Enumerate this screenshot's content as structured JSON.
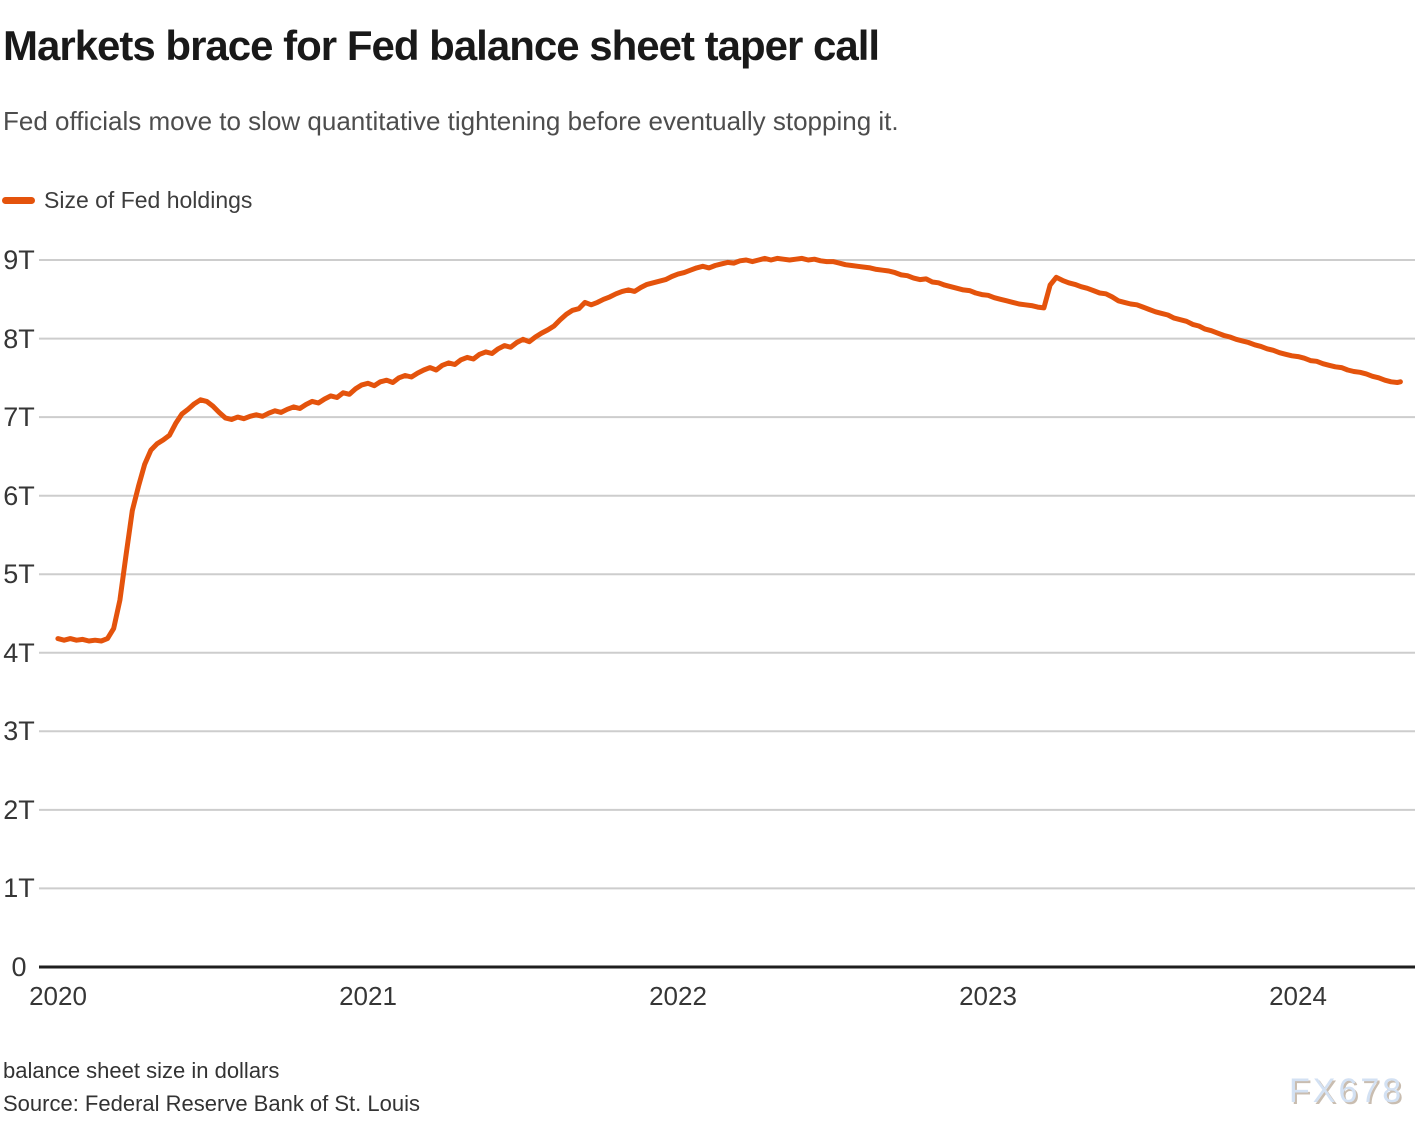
{
  "header": {
    "title": "Markets brace for Fed balance sheet taper call",
    "subtitle": "Fed officials move to slow quantitative tightening before eventually stopping it."
  },
  "legend": {
    "label": "Size of Fed holdings",
    "color": "#e4530c"
  },
  "footer": {
    "note": "balance sheet size in dollars",
    "source": "Source: Federal Reserve Bank of St. Louis"
  },
  "watermark": "FX678",
  "colors": {
    "line": "#e4530c",
    "grid": "#cdcdcd",
    "axis": "#1f1f1f",
    "tick_text": "#363636"
  },
  "chart_data": {
    "type": "line",
    "title": "Markets brace for Fed balance sheet taper call",
    "subtitle": "Fed officials move to slow quantitative tightening before eventually stopping it.",
    "xlabel": "",
    "ylabel": "balance sheet size in dollars",
    "unit": "trillions of US dollars",
    "grid": true,
    "legend_position": "top-left",
    "xlim": [
      2019.939,
      2024.377
    ],
    "ylim": [
      0,
      9
    ],
    "x_ticks": [
      {
        "value": 2020,
        "label": "2020"
      },
      {
        "value": 2021,
        "label": "2021"
      },
      {
        "value": 2022,
        "label": "2022"
      },
      {
        "value": 2023,
        "label": "2023"
      },
      {
        "value": 2024,
        "label": "2024"
      }
    ],
    "y_ticks": [
      {
        "value": 0,
        "label": "0"
      },
      {
        "value": 1,
        "label": "1T"
      },
      {
        "value": 2,
        "label": "2T"
      },
      {
        "value": 3,
        "label": "3T"
      },
      {
        "value": 4,
        "label": "4T"
      },
      {
        "value": 5,
        "label": "5T"
      },
      {
        "value": 6,
        "label": "6T"
      },
      {
        "value": 7,
        "label": "7T"
      },
      {
        "value": 8,
        "label": "8T"
      },
      {
        "value": 9,
        "label": "9T"
      }
    ],
    "series": [
      {
        "name": "Size of Fed holdings",
        "color": "#e4530c",
        "points": [
          [
            2020.0,
            4.18
          ],
          [
            2020.02,
            4.16
          ],
          [
            2020.04,
            4.18
          ],
          [
            2020.06,
            4.16
          ],
          [
            2020.08,
            4.17
          ],
          [
            2020.1,
            4.15
          ],
          [
            2020.12,
            4.16
          ],
          [
            2020.14,
            4.15
          ],
          [
            2020.16,
            4.18
          ],
          [
            2020.18,
            4.31
          ],
          [
            2020.2,
            4.67
          ],
          [
            2020.22,
            5.25
          ],
          [
            2020.24,
            5.81
          ],
          [
            2020.26,
            6.12
          ],
          [
            2020.28,
            6.4
          ],
          [
            2020.3,
            6.58
          ],
          [
            2020.32,
            6.66
          ],
          [
            2020.34,
            6.71
          ],
          [
            2020.36,
            6.77
          ],
          [
            2020.38,
            6.92
          ],
          [
            2020.4,
            7.04
          ],
          [
            2020.42,
            7.1
          ],
          [
            2020.44,
            7.17
          ],
          [
            2020.46,
            7.22
          ],
          [
            2020.48,
            7.2
          ],
          [
            2020.5,
            7.14
          ],
          [
            2020.52,
            7.06
          ],
          [
            2020.54,
            6.99
          ],
          [
            2020.56,
            6.97
          ],
          [
            2020.58,
            7.0
          ],
          [
            2020.6,
            6.98
          ],
          [
            2020.62,
            7.01
          ],
          [
            2020.64,
            7.03
          ],
          [
            2020.66,
            7.01
          ],
          [
            2020.68,
            7.05
          ],
          [
            2020.7,
            7.08
          ],
          [
            2020.72,
            7.06
          ],
          [
            2020.74,
            7.1
          ],
          [
            2020.76,
            7.13
          ],
          [
            2020.78,
            7.11
          ],
          [
            2020.8,
            7.16
          ],
          [
            2020.82,
            7.2
          ],
          [
            2020.84,
            7.18
          ],
          [
            2020.86,
            7.23
          ],
          [
            2020.88,
            7.27
          ],
          [
            2020.9,
            7.25
          ],
          [
            2020.92,
            7.31
          ],
          [
            2020.94,
            7.29
          ],
          [
            2020.96,
            7.36
          ],
          [
            2020.98,
            7.41
          ],
          [
            2021.0,
            7.43
          ],
          [
            2021.02,
            7.4
          ],
          [
            2021.04,
            7.45
          ],
          [
            2021.06,
            7.47
          ],
          [
            2021.08,
            7.44
          ],
          [
            2021.1,
            7.5
          ],
          [
            2021.12,
            7.53
          ],
          [
            2021.14,
            7.51
          ],
          [
            2021.16,
            7.56
          ],
          [
            2021.18,
            7.6
          ],
          [
            2021.2,
            7.63
          ],
          [
            2021.22,
            7.6
          ],
          [
            2021.24,
            7.66
          ],
          [
            2021.26,
            7.69
          ],
          [
            2021.28,
            7.67
          ],
          [
            2021.3,
            7.73
          ],
          [
            2021.32,
            7.76
          ],
          [
            2021.34,
            7.74
          ],
          [
            2021.36,
            7.8
          ],
          [
            2021.38,
            7.83
          ],
          [
            2021.4,
            7.81
          ],
          [
            2021.42,
            7.87
          ],
          [
            2021.44,
            7.91
          ],
          [
            2021.46,
            7.89
          ],
          [
            2021.48,
            7.95
          ],
          [
            2021.5,
            7.99
          ],
          [
            2021.52,
            7.96
          ],
          [
            2021.54,
            8.02
          ],
          [
            2021.56,
            8.07
          ],
          [
            2021.58,
            8.11
          ],
          [
            2021.6,
            8.16
          ],
          [
            2021.62,
            8.24
          ],
          [
            2021.64,
            8.31
          ],
          [
            2021.66,
            8.36
          ],
          [
            2021.68,
            8.38
          ],
          [
            2021.7,
            8.46
          ],
          [
            2021.72,
            8.43
          ],
          [
            2021.74,
            8.46
          ],
          [
            2021.76,
            8.5
          ],
          [
            2021.78,
            8.53
          ],
          [
            2021.8,
            8.57
          ],
          [
            2021.82,
            8.6
          ],
          [
            2021.84,
            8.62
          ],
          [
            2021.86,
            8.6
          ],
          [
            2021.88,
            8.65
          ],
          [
            2021.9,
            8.69
          ],
          [
            2021.92,
            8.71
          ],
          [
            2021.94,
            8.73
          ],
          [
            2021.96,
            8.75
          ],
          [
            2021.98,
            8.79
          ],
          [
            2022.0,
            8.82
          ],
          [
            2022.02,
            8.84
          ],
          [
            2022.04,
            8.87
          ],
          [
            2022.06,
            8.9
          ],
          [
            2022.08,
            8.92
          ],
          [
            2022.1,
            8.9
          ],
          [
            2022.12,
            8.93
          ],
          [
            2022.14,
            8.95
          ],
          [
            2022.16,
            8.97
          ],
          [
            2022.18,
            8.96
          ],
          [
            2022.2,
            8.99
          ],
          [
            2022.22,
            9.0
          ],
          [
            2022.24,
            8.98
          ],
          [
            2022.26,
            9.0
          ],
          [
            2022.28,
            9.02
          ],
          [
            2022.3,
            9.0
          ],
          [
            2022.32,
            9.02
          ],
          [
            2022.34,
            9.01
          ],
          [
            2022.36,
            9.0
          ],
          [
            2022.38,
            9.01
          ],
          [
            2022.4,
            9.02
          ],
          [
            2022.42,
            9.0
          ],
          [
            2022.44,
            9.01
          ],
          [
            2022.46,
            8.99
          ],
          [
            2022.48,
            8.98
          ],
          [
            2022.5,
            8.98
          ],
          [
            2022.52,
            8.96
          ],
          [
            2022.54,
            8.94
          ],
          [
            2022.56,
            8.93
          ],
          [
            2022.58,
            8.92
          ],
          [
            2022.6,
            8.91
          ],
          [
            2022.62,
            8.9
          ],
          [
            2022.64,
            8.88
          ],
          [
            2022.66,
            8.87
          ],
          [
            2022.68,
            8.86
          ],
          [
            2022.7,
            8.84
          ],
          [
            2022.72,
            8.81
          ],
          [
            2022.74,
            8.8
          ],
          [
            2022.76,
            8.77
          ],
          [
            2022.78,
            8.75
          ],
          [
            2022.8,
            8.76
          ],
          [
            2022.82,
            8.72
          ],
          [
            2022.84,
            8.71
          ],
          [
            2022.86,
            8.68
          ],
          [
            2022.88,
            8.66
          ],
          [
            2022.9,
            8.64
          ],
          [
            2022.92,
            8.62
          ],
          [
            2022.94,
            8.61
          ],
          [
            2022.96,
            8.58
          ],
          [
            2022.98,
            8.56
          ],
          [
            2023.0,
            8.55
          ],
          [
            2023.02,
            8.52
          ],
          [
            2023.04,
            8.5
          ],
          [
            2023.06,
            8.48
          ],
          [
            2023.08,
            8.46
          ],
          [
            2023.1,
            8.44
          ],
          [
            2023.12,
            8.43
          ],
          [
            2023.14,
            8.42
          ],
          [
            2023.16,
            8.4
          ],
          [
            2023.18,
            8.39
          ],
          [
            2023.2,
            8.68
          ],
          [
            2023.22,
            8.78
          ],
          [
            2023.24,
            8.74
          ],
          [
            2023.26,
            8.71
          ],
          [
            2023.28,
            8.69
          ],
          [
            2023.3,
            8.66
          ],
          [
            2023.32,
            8.64
          ],
          [
            2023.34,
            8.61
          ],
          [
            2023.36,
            8.58
          ],
          [
            2023.38,
            8.57
          ],
          [
            2023.4,
            8.53
          ],
          [
            2023.42,
            8.48
          ],
          [
            2023.44,
            8.46
          ],
          [
            2023.46,
            8.44
          ],
          [
            2023.48,
            8.43
          ],
          [
            2023.5,
            8.4
          ],
          [
            2023.52,
            8.37
          ],
          [
            2023.54,
            8.34
          ],
          [
            2023.56,
            8.32
          ],
          [
            2023.58,
            8.3
          ],
          [
            2023.6,
            8.26
          ],
          [
            2023.62,
            8.24
          ],
          [
            2023.64,
            8.22
          ],
          [
            2023.66,
            8.18
          ],
          [
            2023.68,
            8.16
          ],
          [
            2023.7,
            8.12
          ],
          [
            2023.72,
            8.1
          ],
          [
            2023.74,
            8.07
          ],
          [
            2023.76,
            8.04
          ],
          [
            2023.78,
            8.02
          ],
          [
            2023.8,
            7.99
          ],
          [
            2023.82,
            7.97
          ],
          [
            2023.84,
            7.95
          ],
          [
            2023.86,
            7.92
          ],
          [
            2023.88,
            7.9
          ],
          [
            2023.9,
            7.87
          ],
          [
            2023.92,
            7.85
          ],
          [
            2023.94,
            7.82
          ],
          [
            2023.96,
            7.8
          ],
          [
            2023.98,
            7.78
          ],
          [
            2024.0,
            7.77
          ],
          [
            2024.02,
            7.75
          ],
          [
            2024.04,
            7.72
          ],
          [
            2024.06,
            7.71
          ],
          [
            2024.08,
            7.68
          ],
          [
            2024.1,
            7.66
          ],
          [
            2024.12,
            7.64
          ],
          [
            2024.14,
            7.63
          ],
          [
            2024.16,
            7.6
          ],
          [
            2024.18,
            7.58
          ],
          [
            2024.2,
            7.57
          ],
          [
            2024.22,
            7.55
          ],
          [
            2024.24,
            7.52
          ],
          [
            2024.26,
            7.5
          ],
          [
            2024.28,
            7.47
          ],
          [
            2024.3,
            7.45
          ],
          [
            2024.32,
            7.44
          ],
          [
            2024.33,
            7.45
          ]
        ]
      }
    ]
  }
}
